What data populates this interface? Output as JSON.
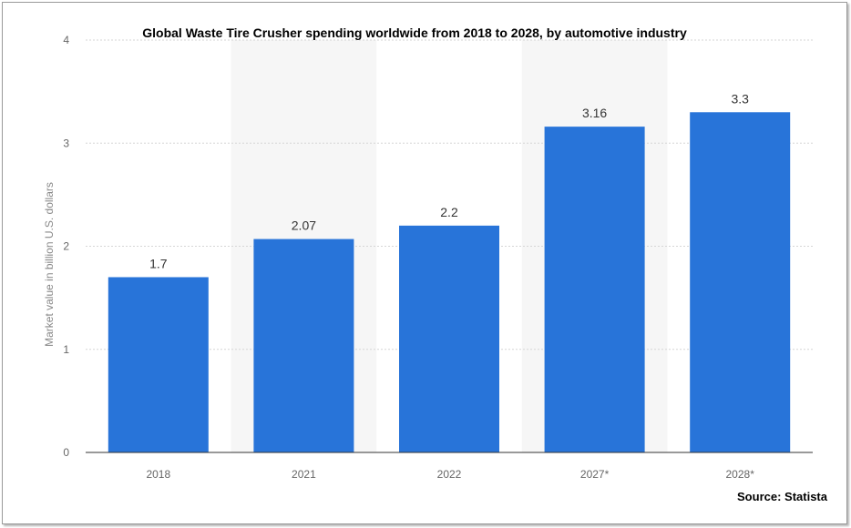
{
  "chart_data": {
    "type": "bar",
    "title": "Global Waste Tire Crusher spending worldwide from 2018 to 2028, by automotive industry",
    "categories": [
      "2018",
      "2021",
      "2022",
      "2027*",
      "2028*"
    ],
    "values": [
      1.7,
      2.07,
      2.2,
      3.16,
      3.3
    ],
    "data_labels": [
      "1.7",
      "2.07",
      "2.2",
      "3.16",
      "3.3"
    ],
    "ylabel": "Market value in billion U.S. dollars",
    "xlabel": "",
    "ylim": [
      0,
      4
    ],
    "yticks": [
      "0",
      "1",
      "2",
      "3",
      "4"
    ],
    "bar_color": "#2874d9",
    "grid": true,
    "source": "Source: Statista"
  }
}
